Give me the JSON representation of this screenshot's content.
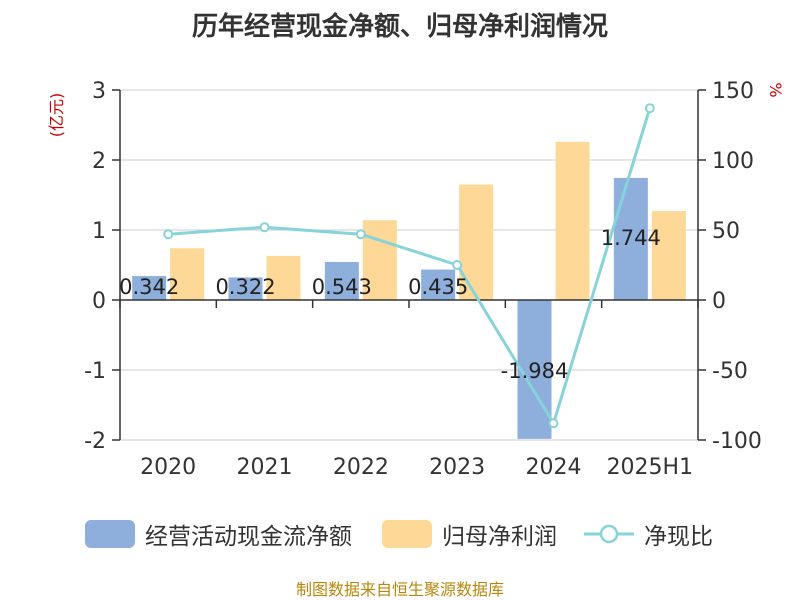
{
  "title": "历年经营现金净额、归母净利润情况",
  "footer": "制图数据来自恒生聚源数据库",
  "chart_data": {
    "type": "bar",
    "categories": [
      "2020",
      "2021",
      "2022",
      "2023",
      "2024",
      "2025H1"
    ],
    "y_left": {
      "unit": "(亿元)",
      "ylim": [
        -2,
        3
      ],
      "ticks": [
        "-2",
        "-1",
        "0",
        "1",
        "2",
        "3"
      ]
    },
    "y_right": {
      "unit": "%",
      "ylim": [
        -100,
        150
      ],
      "ticks": [
        "-100",
        "-50",
        "0",
        "50",
        "100",
        "150"
      ]
    },
    "series": [
      {
        "name": "经营活动现金流净额",
        "type": "bar",
        "axis": "left",
        "color": "#8eaedc",
        "values": [
          0.342,
          0.322,
          0.543,
          0.435,
          -1.984,
          1.744
        ],
        "labels": [
          "0.342",
          "0.322",
          "0.543",
          "0.435",
          "-1.984",
          "1.744"
        ]
      },
      {
        "name": "归母净利润",
        "type": "bar",
        "axis": "left",
        "color": "#fdd896",
        "values": [
          0.74,
          0.63,
          1.14,
          1.65,
          2.26,
          1.27
        ]
      },
      {
        "name": "净现比",
        "type": "line",
        "axis": "right",
        "color": "#87d3da",
        "values": [
          47,
          52,
          47,
          25,
          -88,
          137
        ]
      }
    ],
    "grid": true,
    "legend": "bottom"
  }
}
